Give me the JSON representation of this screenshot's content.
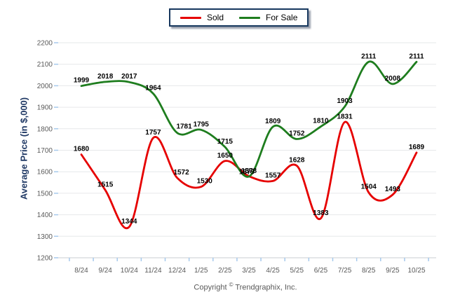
{
  "legend": {
    "items": [
      {
        "label": "Sold",
        "color": "#e60000"
      },
      {
        "label": "For Sale",
        "color": "#1e7d1e"
      }
    ]
  },
  "footer": {
    "prefix": "Copyright",
    "symbol": "©",
    "suffix": "Trendgraphix, Inc."
  },
  "theme": {
    "grid_line": "#e6e8ea",
    "axis_line": "#c9cdd1",
    "tick": "#a6c9ec",
    "tick_label": "#595959",
    "axis_title": "#1f3864",
    "data_label": "#000000",
    "legend_border": "#17375e"
  },
  "chart_data": {
    "type": "line",
    "title": "",
    "xlabel": "",
    "ylabel": "Average Price (in $,000)",
    "categories": [
      "8/24",
      "9/24",
      "10/24",
      "11/24",
      "12/24",
      "1/25",
      "2/25",
      "3/25",
      "4/25",
      "5/25",
      "6/25",
      "7/25",
      "8/25",
      "9/25",
      "10/25"
    ],
    "series": [
      {
        "name": "Sold",
        "color": "#e60000",
        "values": [
          1680,
          1515,
          1344,
          1757,
          1572,
          1530,
          1650,
          1579,
          1557,
          1628,
          1383,
          1831,
          1504,
          1493,
          1689
        ]
      },
      {
        "name": "For Sale",
        "color": "#1e7d1e",
        "values": [
          1999,
          2018,
          2017,
          1964,
          1781,
          1795,
          1715,
          1578,
          1809,
          1752,
          1810,
          1903,
          2111,
          2008,
          2111
        ]
      }
    ],
    "ylim": [
      1200,
      2200
    ],
    "ytick_step": 100,
    "grid": true,
    "data_labels": true,
    "smooth": true,
    "legend_position": "top-center",
    "label_offsets": {
      "0": {
        "4": [
          6,
          0
        ],
        "5": [
          5,
          0
        ],
        "7": [
          -3,
          2
        ]
      },
      "1": {
        "4": [
          10,
          -1
        ]
      }
    }
  }
}
